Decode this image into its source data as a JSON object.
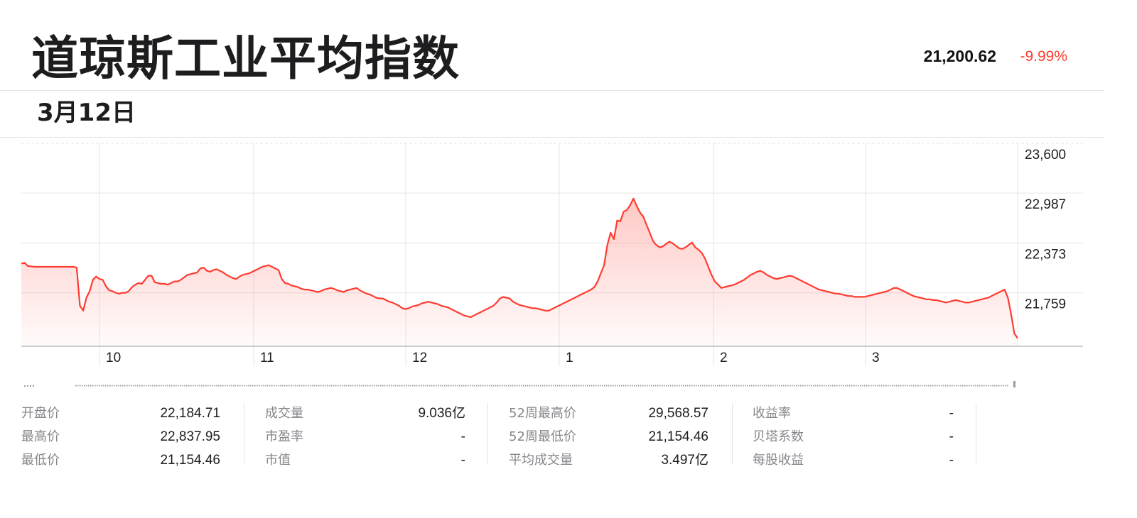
{
  "header": {
    "title": "道琼斯工业平均指数",
    "price": "21,200.62",
    "change": "-9.99%",
    "date": "3月12日"
  },
  "colors": {
    "line": "#ff3b30",
    "down": "#ff3b30",
    "grid": "#e6e6e6"
  },
  "chart_data": {
    "type": "area",
    "title": "",
    "xlabel": "",
    "ylabel": "",
    "x_tick_labels": [
      "10",
      "11",
      "12",
      "1",
      "2",
      "3"
    ],
    "y_tick_labels": [
      "23,600",
      "22,987",
      "22,373",
      "21,759"
    ],
    "ylim": [
      21154,
      23600
    ],
    "grid": true,
    "series": [
      {
        "values": [
          22120,
          22130,
          22090,
          22085,
          22080,
          22080,
          22080,
          22080,
          22080,
          22080,
          22080,
          22080,
          22080,
          22080,
          22080,
          22080,
          22080,
          22070,
          21600,
          21540,
          21700,
          21780,
          21920,
          21960,
          21930,
          21920,
          21840,
          21790,
          21780,
          21760,
          21750,
          21760,
          21760,
          21780,
          21830,
          21860,
          21880,
          21870,
          21920,
          21970,
          21970,
          21890,
          21880,
          21870,
          21870,
          21860,
          21880,
          21900,
          21900,
          21920,
          21950,
          21980,
          21990,
          22000,
          22010,
          22060,
          22070,
          22030,
          22020,
          22040,
          22050,
          22030,
          22010,
          21980,
          21960,
          21940,
          21930,
          21960,
          21980,
          21990,
          22000,
          22020,
          22040,
          22060,
          22080,
          22090,
          22100,
          22080,
          22060,
          22040,
          21930,
          21880,
          21870,
          21850,
          21840,
          21830,
          21810,
          21800,
          21800,
          21790,
          21780,
          21770,
          21780,
          21800,
          21810,
          21820,
          21810,
          21790,
          21780,
          21770,
          21790,
          21800,
          21810,
          21820,
          21790,
          21770,
          21750,
          21740,
          21720,
          21700,
          21690,
          21690,
          21670,
          21650,
          21640,
          21620,
          21600,
          21570,
          21560,
          21570,
          21590,
          21600,
          21610,
          21630,
          21640,
          21650,
          21640,
          21630,
          21620,
          21600,
          21590,
          21580,
          21560,
          21540,
          21520,
          21500,
          21480,
          21470,
          21460,
          21480,
          21500,
          21520,
          21540,
          21560,
          21580,
          21600,
          21640,
          21690,
          21710,
          21700,
          21690,
          21650,
          21630,
          21610,
          21600,
          21590,
          21580,
          21570,
          21570,
          21560,
          21550,
          21540,
          21540,
          21560,
          21580,
          21600,
          21620,
          21640,
          21660,
          21680,
          21700,
          21720,
          21740,
          21760,
          21780,
          21800,
          21830,
          21900,
          22000,
          22100,
          22350,
          22500,
          22420,
          22650,
          22640,
          22760,
          22780,
          22840,
          22920,
          22830,
          22750,
          22700,
          22600,
          22500,
          22400,
          22350,
          22320,
          22330,
          22360,
          22390,
          22370,
          22340,
          22310,
          22300,
          22320,
          22350,
          22380,
          22320,
          22290,
          22250,
          22180,
          22080,
          21980,
          21900,
          21860,
          21820,
          21830,
          21840,
          21850,
          21860,
          21880,
          21900,
          21920,
          21950,
          21980,
          22000,
          22020,
          22030,
          22010,
          21980,
          21960,
          21940,
          21930,
          21940,
          21950,
          21960,
          21970,
          21960,
          21940,
          21920,
          21900,
          21880,
          21860,
          21840,
          21820,
          21800,
          21790,
          21780,
          21770,
          21760,
          21750,
          21750,
          21740,
          21730,
          21720,
          21720,
          21710,
          21710,
          21710,
          21710,
          21720,
          21730,
          21740,
          21750,
          21760,
          21770,
          21780,
          21800,
          21820,
          21820,
          21800,
          21780,
          21760,
          21740,
          21720,
          21710,
          21700,
          21690,
          21680,
          21680,
          21670,
          21670,
          21660,
          21650,
          21640,
          21650,
          21660,
          21670,
          21660,
          21650,
          21640,
          21640,
          21650,
          21660,
          21670,
          21680,
          21690,
          21700,
          21720,
          21740,
          21760,
          21780,
          21800,
          21700,
          21500,
          21260,
          21200
        ]
      }
    ]
  },
  "stats": [
    {
      "label": "开盘价",
      "value": "22,184.71"
    },
    {
      "label": "最高价",
      "value": "22,837.95"
    },
    {
      "label": "最低价",
      "value": "21,154.46"
    },
    {
      "label": "成交量",
      "value": "9.036亿"
    },
    {
      "label": "市盈率",
      "value": "-"
    },
    {
      "label": "市值",
      "value": "-"
    },
    {
      "label": "52周最高价",
      "value": "29,568.57"
    },
    {
      "label": "52周最低价",
      "value": "21,154.46"
    },
    {
      "label": "平均成交量",
      "value": "3.497亿"
    },
    {
      "label": "收益率",
      "value": "-"
    },
    {
      "label": "贝塔系数",
      "value": "-"
    },
    {
      "label": "每股收益",
      "value": "-"
    }
  ]
}
